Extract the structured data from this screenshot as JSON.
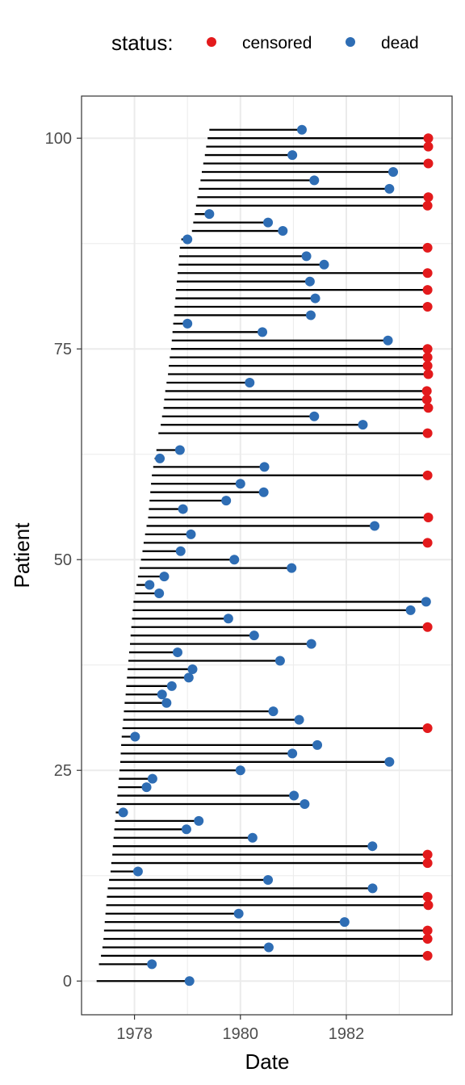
{
  "chart_data": {
    "type": "scatter",
    "subtype": "swimmer-lollipop",
    "xlabel": "Date",
    "ylabel": "Patient",
    "x_ticks": [
      "1978",
      "1980",
      "1982"
    ],
    "y_ticks": [
      "0",
      "25",
      "50",
      "75",
      "100"
    ],
    "xlim": [
      "1977-01-01",
      "1983-12-31"
    ],
    "ylim": [
      -4,
      105
    ],
    "grid": true,
    "legend": {
      "title": "status:",
      "position": "top",
      "entries": [
        {
          "label": "censored",
          "color": "#E31A1C"
        },
        {
          "label": "dead",
          "color": "#2E6DB4"
        }
      ]
    },
    "colors": {
      "censored": "#E31A1C",
      "dead": "#2E6DB4",
      "segment": "#000000"
    },
    "segment_start": "entry date",
    "patients": [
      {
        "patient": 0,
        "entry": "1977-04-15",
        "end": "1979-01-15",
        "status": "dead"
      },
      {
        "patient": 2,
        "entry": "1977-05-01",
        "end": "1978-05-01",
        "status": "dead"
      },
      {
        "patient": 3,
        "entry": "1977-05-15",
        "end": "1983-07-15",
        "status": "censored"
      },
      {
        "patient": 4,
        "entry": "1977-05-25",
        "end": "1980-07-15",
        "status": "dead"
      },
      {
        "patient": 5,
        "entry": "1977-06-01",
        "end": "1983-07-15",
        "status": "censored"
      },
      {
        "patient": 6,
        "entry": "1977-06-05",
        "end": "1983-07-15",
        "status": "censored"
      },
      {
        "patient": 7,
        "entry": "1977-06-10",
        "end": "1981-12-20",
        "status": "dead"
      },
      {
        "patient": 8,
        "entry": "1977-06-15",
        "end": "1979-12-20",
        "status": "dead"
      },
      {
        "patient": 9,
        "entry": "1977-06-20",
        "end": "1983-07-20",
        "status": "censored"
      },
      {
        "patient": 10,
        "entry": "1977-06-25",
        "end": "1983-07-15",
        "status": "censored"
      },
      {
        "patient": 11,
        "entry": "1977-07-01",
        "end": "1982-07-01",
        "status": "dead"
      },
      {
        "patient": 12,
        "entry": "1977-07-10",
        "end": "1980-07-10",
        "status": "dead"
      },
      {
        "patient": 13,
        "entry": "1977-07-20",
        "end": "1978-01-25",
        "status": "dead"
      },
      {
        "patient": 14,
        "entry": "1977-07-25",
        "end": "1983-07-15",
        "status": "censored"
      },
      {
        "patient": 15,
        "entry": "1977-08-01",
        "end": "1983-07-15",
        "status": "censored"
      },
      {
        "patient": 16,
        "entry": "1977-08-05",
        "end": "1982-06-30",
        "status": "dead"
      },
      {
        "patient": 17,
        "entry": "1977-08-10",
        "end": "1980-03-25",
        "status": "dead"
      },
      {
        "patient": 18,
        "entry": "1977-08-15",
        "end": "1978-12-25",
        "status": "dead"
      },
      {
        "patient": 19,
        "entry": "1977-08-20",
        "end": "1979-03-20",
        "status": "dead"
      },
      {
        "patient": 20,
        "entry": "1977-08-25",
        "end": "1977-10-15",
        "status": "dead"
      },
      {
        "patient": 21,
        "entry": "1977-09-01",
        "end": "1981-03-20",
        "status": "dead"
      },
      {
        "patient": 22,
        "entry": "1977-09-05",
        "end": "1981-01-05",
        "status": "dead"
      },
      {
        "patient": 23,
        "entry": "1977-09-10",
        "end": "1978-03-25",
        "status": "dead"
      },
      {
        "patient": 24,
        "entry": "1977-09-15",
        "end": "1978-05-05",
        "status": "dead"
      },
      {
        "patient": 25,
        "entry": "1977-09-20",
        "end": "1980-01-01",
        "status": "dead"
      },
      {
        "patient": 26,
        "entry": "1977-09-25",
        "end": "1982-10-25",
        "status": "dead"
      },
      {
        "patient": 27,
        "entry": "1977-09-28",
        "end": "1980-12-25",
        "status": "dead"
      },
      {
        "patient": 28,
        "entry": "1977-10-01",
        "end": "1981-06-15",
        "status": "dead"
      },
      {
        "patient": 29,
        "entry": "1977-10-05",
        "end": "1978-01-05",
        "status": "dead"
      },
      {
        "patient": 30,
        "entry": "1977-10-10",
        "end": "1983-07-15",
        "status": "censored"
      },
      {
        "patient": 31,
        "entry": "1977-10-15",
        "end": "1981-02-10",
        "status": "dead"
      },
      {
        "patient": 32,
        "entry": "1977-10-20",
        "end": "1980-08-15",
        "status": "dead"
      },
      {
        "patient": 33,
        "entry": "1977-10-25",
        "end": "1978-08-10",
        "status": "dead"
      },
      {
        "patient": 34,
        "entry": "1977-11-01",
        "end": "1978-07-10",
        "status": "dead"
      },
      {
        "patient": 35,
        "entry": "1977-11-05",
        "end": "1978-09-15",
        "status": "dead"
      },
      {
        "patient": 36,
        "entry": "1977-11-10",
        "end": "1979-01-10",
        "status": "dead"
      },
      {
        "patient": 37,
        "entry": "1977-11-15",
        "end": "1979-02-05",
        "status": "dead"
      },
      {
        "patient": 38,
        "entry": "1977-11-20",
        "end": "1980-10-01",
        "status": "dead"
      },
      {
        "patient": 39,
        "entry": "1977-11-25",
        "end": "1978-10-25",
        "status": "dead"
      },
      {
        "patient": 40,
        "entry": "1977-12-01",
        "end": "1981-05-05",
        "status": "dead"
      },
      {
        "patient": 41,
        "entry": "1977-12-05",
        "end": "1980-04-05",
        "status": "dead"
      },
      {
        "patient": 42,
        "entry": "1977-12-10",
        "end": "1983-07-15",
        "status": "censored"
      },
      {
        "patient": 43,
        "entry": "1977-12-15",
        "end": "1979-10-10",
        "status": "dead"
      },
      {
        "patient": 44,
        "entry": "1977-12-20",
        "end": "1983-03-20",
        "status": "dead"
      },
      {
        "patient": 45,
        "entry": "1977-12-25",
        "end": "1983-07-05",
        "status": "dead"
      },
      {
        "patient": 46,
        "entry": "1978-01-05",
        "end": "1978-06-20",
        "status": "dead"
      },
      {
        "patient": 47,
        "entry": "1978-01-15",
        "end": "1978-04-15",
        "status": "dead"
      },
      {
        "patient": 48,
        "entry": "1978-01-25",
        "end": "1978-07-25",
        "status": "dead"
      },
      {
        "patient": 49,
        "entry": "1978-02-05",
        "end": "1980-12-20",
        "status": "dead"
      },
      {
        "patient": 50,
        "entry": "1978-02-15",
        "end": "1979-11-20",
        "status": "dead"
      },
      {
        "patient": 51,
        "entry": "1978-02-25",
        "end": "1978-11-15",
        "status": "dead"
      },
      {
        "patient": 52,
        "entry": "1978-03-05",
        "end": "1983-07-15",
        "status": "censored"
      },
      {
        "patient": 53,
        "entry": "1978-03-15",
        "end": "1979-01-25",
        "status": "dead"
      },
      {
        "patient": 54,
        "entry": "1978-03-25",
        "end": "1982-07-15",
        "status": "dead"
      },
      {
        "patient": 55,
        "entry": "1978-04-05",
        "end": "1983-07-20",
        "status": "censored"
      },
      {
        "patient": 56,
        "entry": "1978-04-10",
        "end": "1978-12-01",
        "status": "dead"
      },
      {
        "patient": 57,
        "entry": "1978-04-15",
        "end": "1979-09-25",
        "status": "dead"
      },
      {
        "patient": 58,
        "entry": "1978-04-20",
        "end": "1980-06-10",
        "status": "dead"
      },
      {
        "patient": 59,
        "entry": "1978-04-25",
        "end": "1980-01-01",
        "status": "dead"
      },
      {
        "patient": 60,
        "entry": "1978-05-01",
        "end": "1983-07-15",
        "status": "censored"
      },
      {
        "patient": 61,
        "entry": "1978-05-10",
        "end": "1980-06-15",
        "status": "dead"
      },
      {
        "patient": 62,
        "entry": "1978-05-20",
        "end": "1978-06-25",
        "status": "dead"
      },
      {
        "patient": 63,
        "entry": "1978-06-01",
        "end": "1978-11-10",
        "status": "dead"
      },
      {
        "patient": 65,
        "entry": "1978-06-15",
        "end": "1983-07-15",
        "status": "censored"
      },
      {
        "patient": 66,
        "entry": "1978-07-01",
        "end": "1982-04-25",
        "status": "dead"
      },
      {
        "patient": 67,
        "entry": "1978-07-10",
        "end": "1981-05-25",
        "status": "dead"
      },
      {
        "patient": 68,
        "entry": "1978-07-20",
        "end": "1983-07-20",
        "status": "censored"
      },
      {
        "patient": 69,
        "entry": "1978-07-25",
        "end": "1983-07-10",
        "status": "censored"
      },
      {
        "patient": 70,
        "entry": "1978-08-01",
        "end": "1983-07-10",
        "status": "censored"
      },
      {
        "patient": 71,
        "entry": "1978-08-10",
        "end": "1980-03-05",
        "status": "dead"
      },
      {
        "patient": 72,
        "entry": "1978-08-20",
        "end": "1983-07-20",
        "status": "censored"
      },
      {
        "patient": 73,
        "entry": "1978-08-25",
        "end": "1983-07-15",
        "status": "censored"
      },
      {
        "patient": 74,
        "entry": "1978-09-01",
        "end": "1983-07-15",
        "status": "censored"
      },
      {
        "patient": 75,
        "entry": "1978-09-10",
        "end": "1983-07-15",
        "status": "censored"
      },
      {
        "patient": 76,
        "entry": "1978-09-15",
        "end": "1982-10-15",
        "status": "dead"
      },
      {
        "patient": 77,
        "entry": "1978-09-20",
        "end": "1980-06-01",
        "status": "dead"
      },
      {
        "patient": 78,
        "entry": "1978-09-25",
        "end": "1979-01-01",
        "status": "dead"
      },
      {
        "patient": 79,
        "entry": "1978-10-01",
        "end": "1981-05-01",
        "status": "dead"
      },
      {
        "patient": 80,
        "entry": "1978-10-05",
        "end": "1983-07-15",
        "status": "censored"
      },
      {
        "patient": 81,
        "entry": "1978-10-10",
        "end": "1981-06-01",
        "status": "dead"
      },
      {
        "patient": 82,
        "entry": "1978-10-15",
        "end": "1983-07-15",
        "status": "censored"
      },
      {
        "patient": 83,
        "entry": "1978-10-20",
        "end": "1981-04-25",
        "status": "dead"
      },
      {
        "patient": 84,
        "entry": "1978-10-25",
        "end": "1983-07-15",
        "status": "censored"
      },
      {
        "patient": 85,
        "entry": "1978-11-01",
        "end": "1981-08-01",
        "status": "dead"
      },
      {
        "patient": 86,
        "entry": "1978-11-05",
        "end": "1981-04-01",
        "status": "dead"
      },
      {
        "patient": 87,
        "entry": "1978-11-10",
        "end": "1983-07-15",
        "status": "censored"
      },
      {
        "patient": 88,
        "entry": "1978-11-20",
        "end": "1979-01-01",
        "status": "dead"
      },
      {
        "patient": 89,
        "entry": "1979-02-01",
        "end": "1980-10-20",
        "status": "dead"
      },
      {
        "patient": 90,
        "entry": "1979-02-10",
        "end": "1980-07-10",
        "status": "dead"
      },
      {
        "patient": 91,
        "entry": "1979-02-20",
        "end": "1979-06-01",
        "status": "dead"
      },
      {
        "patient": 92,
        "entry": "1979-03-01",
        "end": "1983-07-15",
        "status": "censored"
      },
      {
        "patient": 93,
        "entry": "1979-03-10",
        "end": "1983-07-20",
        "status": "censored"
      },
      {
        "patient": 94,
        "entry": "1979-03-20",
        "end": "1982-10-25",
        "status": "dead"
      },
      {
        "patient": 95,
        "entry": "1979-04-01",
        "end": "1981-05-25",
        "status": "dead"
      },
      {
        "patient": 96,
        "entry": "1979-04-10",
        "end": "1982-11-20",
        "status": "dead"
      },
      {
        "patient": 97,
        "entry": "1979-04-20",
        "end": "1983-07-20",
        "status": "censored"
      },
      {
        "patient": 98,
        "entry": "1979-05-01",
        "end": "1980-12-25",
        "status": "dead"
      },
      {
        "patient": 99,
        "entry": "1979-05-10",
        "end": "1983-07-20",
        "status": "censored"
      },
      {
        "patient": 100,
        "entry": "1979-05-20",
        "end": "1983-07-20",
        "status": "censored"
      },
      {
        "patient": 101,
        "entry": "1979-06-01",
        "end": "1981-03-01",
        "status": "dead"
      }
    ]
  }
}
